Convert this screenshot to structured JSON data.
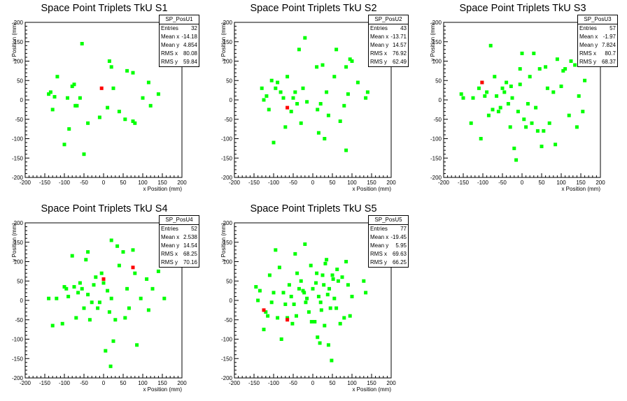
{
  "colors": {
    "normal": "#00ff00",
    "highlight": "#ff0000",
    "axis": "#000000"
  },
  "chart_data": [
    {
      "type": "scatter",
      "title": "Space Point Triplets TkU S1",
      "xlabel": "x Position (mm)",
      "ylabel": "y Position (mm)",
      "xlim": [
        -200,
        200
      ],
      "ylim": [
        -200,
        200
      ],
      "xticks": [
        "-200",
        "-150",
        "-100",
        "-50",
        "0",
        "50",
        "100",
        "150",
        "200"
      ],
      "yticks": [
        "-200",
        "-150",
        "-100",
        "-50",
        "0",
        "50",
        "100",
        "150",
        "200"
      ],
      "stats": {
        "name": "SP_PosU1",
        "rows": [
          [
            "Entries",
            "32"
          ],
          [
            "Mean x",
            "-14.18"
          ],
          [
            "Mean y",
            "4.854"
          ],
          [
            "RMS x",
            "80.08"
          ],
          [
            "RMS y",
            "59.84"
          ]
        ]
      },
      "points": [
        [
          -140,
          15
        ],
        [
          -135,
          20
        ],
        [
          -130,
          -25
        ],
        [
          -125,
          8
        ],
        [
          -118,
          60
        ],
        [
          -100,
          -115
        ],
        [
          -92,
          5
        ],
        [
          -88,
          -75
        ],
        [
          -80,
          35
        ],
        [
          -75,
          40
        ],
        [
          -72,
          -15
        ],
        [
          -68,
          -15
        ],
        [
          -60,
          5
        ],
        [
          -55,
          145
        ],
        [
          -50,
          -140
        ],
        [
          -40,
          -60
        ],
        [
          -10,
          -45
        ],
        [
          10,
          -20
        ],
        [
          15,
          100
        ],
        [
          20,
          85
        ],
        [
          25,
          30
        ],
        [
          40,
          -30
        ],
        [
          55,
          -50
        ],
        [
          60,
          75
        ],
        [
          75,
          70
        ],
        [
          75,
          -55
        ],
        [
          80,
          -60
        ],
        [
          100,
          5
        ],
        [
          115,
          45
        ],
        [
          120,
          -15
        ],
        [
          140,
          15
        ]
      ],
      "highlight": [
        [
          -5,
          30
        ]
      ]
    },
    {
      "type": "scatter",
      "title": "Space Point Triplets TkU S2",
      "xlabel": "x Position (mm)",
      "ylabel": "y Position (mm)",
      "xlim": [
        -200,
        200
      ],
      "ylim": [
        -200,
        200
      ],
      "xticks": [
        "-200",
        "-150",
        "-100",
        "-50",
        "0",
        "50",
        "100",
        "150",
        "200"
      ],
      "yticks": [
        "-200",
        "-150",
        "-100",
        "-50",
        "0",
        "50",
        "100",
        "150",
        "200"
      ],
      "stats": {
        "name": "SP_PosU2",
        "rows": [
          [
            "Entries",
            "43"
          ],
          [
            "Mean x",
            "-13.71"
          ],
          [
            "Mean y",
            "14.57"
          ],
          [
            "RMS x",
            "76.92"
          ],
          [
            "RMS y",
            "62.49"
          ]
        ]
      },
      "points": [
        [
          -130,
          30
        ],
        [
          -125,
          0
        ],
        [
          -118,
          10
        ],
        [
          -112,
          -25
        ],
        [
          -105,
          50
        ],
        [
          -100,
          -110
        ],
        [
          -95,
          30
        ],
        [
          -90,
          45
        ],
        [
          -82,
          20
        ],
        [
          -75,
          5
        ],
        [
          -70,
          -70
        ],
        [
          -65,
          60
        ],
        [
          -55,
          -30
        ],
        [
          -50,
          5
        ],
        [
          -45,
          20
        ],
        [
          -40,
          -10
        ],
        [
          -35,
          130
        ],
        [
          -30,
          -60
        ],
        [
          -25,
          30
        ],
        [
          -20,
          160
        ],
        [
          -15,
          -5
        ],
        [
          10,
          85
        ],
        [
          12,
          -25
        ],
        [
          15,
          -85
        ],
        [
          20,
          -10
        ],
        [
          25,
          90
        ],
        [
          30,
          -100
        ],
        [
          35,
          20
        ],
        [
          40,
          -40
        ],
        [
          55,
          60
        ],
        [
          60,
          130
        ],
        [
          70,
          -55
        ],
        [
          80,
          -15
        ],
        [
          85,
          85
        ],
        [
          85,
          -130
        ],
        [
          90,
          15
        ],
        [
          95,
          105
        ],
        [
          100,
          100
        ],
        [
          115,
          45
        ],
        [
          135,
          5
        ],
        [
          140,
          20
        ]
      ],
      "highlight": [
        [
          -65,
          -20
        ]
      ]
    },
    {
      "type": "scatter",
      "title": "Space Point Triplets TkU S3",
      "xlabel": "x Position (mm)",
      "ylabel": "y Position (mm)",
      "xlim": [
        -200,
        200
      ],
      "ylim": [
        -200,
        200
      ],
      "xticks": [
        "-200",
        "-150",
        "-100",
        "-50",
        "0",
        "50",
        "100",
        "150",
        "200"
      ],
      "yticks": [
        "-200",
        "-150",
        "-100",
        "-50",
        "0",
        "50",
        "100",
        "150",
        "200"
      ],
      "stats": {
        "name": "SP_PosU3",
        "rows": [
          [
            "Entries",
            "57"
          ],
          [
            "Mean x",
            "-1.97"
          ],
          [
            "Mean y",
            "7.824"
          ],
          [
            "RMS x",
            "80.7"
          ],
          [
            "RMS y",
            "68.37"
          ]
        ]
      },
      "points": [
        [
          -155,
          15
        ],
        [
          -150,
          5
        ],
        [
          -130,
          -60
        ],
        [
          -125,
          5
        ],
        [
          -110,
          30
        ],
        [
          -105,
          -100
        ],
        [
          -102,
          45
        ],
        [
          -95,
          10
        ],
        [
          -90,
          20
        ],
        [
          -85,
          -40
        ],
        [
          -80,
          140
        ],
        [
          -75,
          -25
        ],
        [
          -70,
          60
        ],
        [
          -65,
          10
        ],
        [
          -60,
          -30
        ],
        [
          -55,
          -20
        ],
        [
          -50,
          30
        ],
        [
          -45,
          20
        ],
        [
          -40,
          45
        ],
        [
          -35,
          -10
        ],
        [
          -30,
          -70
        ],
        [
          -28,
          35
        ],
        [
          -25,
          5
        ],
        [
          -20,
          -125
        ],
        [
          -15,
          -155
        ],
        [
          -10,
          -30
        ],
        [
          -5,
          80
        ],
        [
          -5,
          40
        ],
        [
          0,
          120
        ],
        [
          5,
          -50
        ],
        [
          10,
          -70
        ],
        [
          15,
          -10
        ],
        [
          20,
          60
        ],
        [
          25,
          -60
        ],
        [
          30,
          120
        ],
        [
          35,
          -20
        ],
        [
          40,
          -80
        ],
        [
          45,
          80
        ],
        [
          50,
          -120
        ],
        [
          55,
          -80
        ],
        [
          60,
          85
        ],
        [
          65,
          30
        ],
        [
          70,
          -60
        ],
        [
          80,
          20
        ],
        [
          85,
          -115
        ],
        [
          90,
          105
        ],
        [
          100,
          35
        ],
        [
          105,
          75
        ],
        [
          110,
          80
        ],
        [
          120,
          -40
        ],
        [
          125,
          100
        ],
        [
          135,
          90
        ],
        [
          140,
          -70
        ],
        [
          145,
          10
        ],
        [
          155,
          -30
        ],
        [
          160,
          50
        ]
      ],
      "highlight": [
        [
          -102,
          45
        ]
      ]
    },
    {
      "type": "scatter",
      "title": "Space Point Triplets TkU S4",
      "xlabel": "x Position (mm)",
      "ylabel": "y Position (mm)",
      "xlim": [
        -200,
        200
      ],
      "ylim": [
        -200,
        200
      ],
      "xticks": [
        "-200",
        "-150",
        "-100",
        "-50",
        "0",
        "50",
        "100",
        "150",
        "200"
      ],
      "yticks": [
        "-200",
        "-150",
        "-100",
        "-50",
        "0",
        "50",
        "100",
        "150",
        "200"
      ],
      "stats": {
        "name": "SP_PosU4",
        "rows": [
          [
            "Entries",
            "52"
          ],
          [
            "Mean x",
            "2.538"
          ],
          [
            "Mean y",
            "14.54"
          ],
          [
            "RMS x",
            "68.25"
          ],
          [
            "RMS y",
            "70.16"
          ]
        ]
      },
      "points": [
        [
          -140,
          5
        ],
        [
          -130,
          -65
        ],
        [
          -120,
          5
        ],
        [
          -105,
          -60
        ],
        [
          -100,
          35
        ],
        [
          -95,
          30
        ],
        [
          -90,
          10
        ],
        [
          -80,
          115
        ],
        [
          -75,
          35
        ],
        [
          -70,
          -45
        ],
        [
          -65,
          20
        ],
        [
          -60,
          45
        ],
        [
          -55,
          30
        ],
        [
          -50,
          -20
        ],
        [
          -45,
          105
        ],
        [
          -40,
          15
        ],
        [
          -40,
          125
        ],
        [
          -35,
          -50
        ],
        [
          -30,
          -5
        ],
        [
          -25,
          40
        ],
        [
          -20,
          60
        ],
        [
          -15,
          -20
        ],
        [
          -10,
          -5
        ],
        [
          -5,
          70
        ],
        [
          0,
          45
        ],
        [
          5,
          -130
        ],
        [
          10,
          25
        ],
        [
          15,
          -30
        ],
        [
          18,
          -170
        ],
        [
          20,
          5
        ],
        [
          20,
          155
        ],
        [
          25,
          -105
        ],
        [
          30,
          -50
        ],
        [
          35,
          140
        ],
        [
          40,
          90
        ],
        [
          50,
          125
        ],
        [
          55,
          -45
        ],
        [
          60,
          30
        ],
        [
          65,
          -20
        ],
        [
          75,
          130
        ],
        [
          80,
          70
        ],
        [
          85,
          -115
        ],
        [
          95,
          5
        ],
        [
          110,
          55
        ],
        [
          115,
          -25
        ],
        [
          125,
          30
        ],
        [
          140,
          75
        ],
        [
          155,
          5
        ]
      ],
      "highlight": [
        [
          0,
          55
        ],
        [
          75,
          85
        ]
      ]
    },
    {
      "type": "scatter",
      "title": "Space Point Triplets TkU S5",
      "xlabel": "x Position (mm)",
      "ylabel": "y Position (mm)",
      "xlim": [
        -200,
        200
      ],
      "ylim": [
        -200,
        200
      ],
      "xticks": [
        "-200",
        "-150",
        "-100",
        "-50",
        "0",
        "50",
        "100",
        "150",
        "200"
      ],
      "yticks": [
        "-200",
        "-150",
        "-100",
        "-50",
        "0",
        "50",
        "100",
        "150",
        "200"
      ],
      "stats": {
        "name": "SP_PosU5",
        "rows": [
          [
            "Entries",
            "77"
          ],
          [
            "Mean x",
            "-19.45"
          ],
          [
            "Mean y",
            "5.95"
          ],
          [
            "RMS x",
            "69.63"
          ],
          [
            "RMS y",
            "66.25"
          ]
        ]
      },
      "points": [
        [
          -145,
          35
        ],
        [
          -140,
          0
        ],
        [
          -135,
          25
        ],
        [
          -125,
          -75
        ],
        [
          -120,
          -30
        ],
        [
          -115,
          -40
        ],
        [
          -110,
          65
        ],
        [
          -105,
          -5
        ],
        [
          -100,
          20
        ],
        [
          -95,
          130
        ],
        [
          -90,
          -45
        ],
        [
          -85,
          85
        ],
        [
          -80,
          -100
        ],
        [
          -75,
          20
        ],
        [
          -70,
          -10
        ],
        [
          -65,
          -45
        ],
        [
          -60,
          40
        ],
        [
          -55,
          10
        ],
        [
          -52,
          -60
        ],
        [
          -48,
          -10
        ],
        [
          -45,
          120
        ],
        [
          -42,
          -40
        ],
        [
          -40,
          70
        ],
        [
          -35,
          30
        ],
        [
          -30,
          50
        ],
        [
          -25,
          25
        ],
        [
          -22,
          20
        ],
        [
          -20,
          145
        ],
        [
          -18,
          -5
        ],
        [
          -15,
          5
        ],
        [
          -10,
          -30
        ],
        [
          -5,
          90
        ],
        [
          -3,
          -55
        ],
        [
          0,
          30
        ],
        [
          5,
          -55
        ],
        [
          8,
          45
        ],
        [
          10,
          70
        ],
        [
          12,
          -95
        ],
        [
          15,
          10
        ],
        [
          18,
          -110
        ],
        [
          20,
          -5
        ],
        [
          22,
          -25
        ],
        [
          25,
          65
        ],
        [
          28,
          40
        ],
        [
          30,
          -65
        ],
        [
          32,
          95
        ],
        [
          35,
          105
        ],
        [
          38,
          15
        ],
        [
          40,
          -115
        ],
        [
          42,
          30
        ],
        [
          45,
          -20
        ],
        [
          48,
          -155
        ],
        [
          50,
          65
        ],
        [
          52,
          55
        ],
        [
          55,
          5
        ],
        [
          60,
          -20
        ],
        [
          62,
          80
        ],
        [
          65,
          50
        ],
        [
          70,
          -60
        ],
        [
          75,
          60
        ],
        [
          80,
          -45
        ],
        [
          85,
          100
        ],
        [
          90,
          40
        ],
        [
          95,
          -40
        ],
        [
          100,
          10
        ],
        [
          130,
          50
        ],
        [
          135,
          20
        ]
      ],
      "highlight": [
        [
          -125,
          -25
        ],
        [
          -65,
          -50
        ]
      ]
    }
  ]
}
